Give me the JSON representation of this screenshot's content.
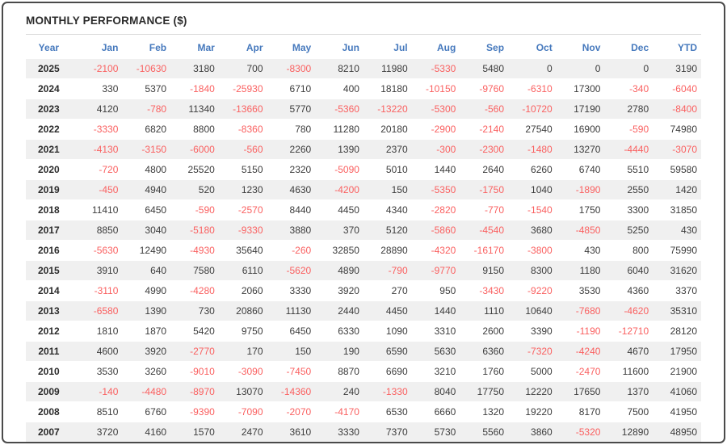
{
  "title": "MONTHLY PERFORMANCE ($)",
  "colors": {
    "header_text": "#4679bd",
    "negative_value": "#fa6060",
    "positive_value": "#3c3c3c",
    "row_alternate_bg": "#f0f0f0",
    "outer_border": "#4a4a4a"
  },
  "table": {
    "columns": [
      "Year",
      "Jan",
      "Feb",
      "Mar",
      "Apr",
      "May",
      "Jun",
      "Jul",
      "Aug",
      "Sep",
      "Oct",
      "Nov",
      "Dec",
      "YTD"
    ],
    "rows": [
      {
        "year": "2025",
        "values": [
          -2100,
          -10630,
          3180,
          700,
          -8300,
          8210,
          11980,
          -5330,
          5480,
          0,
          0,
          0,
          3190
        ]
      },
      {
        "year": "2024",
        "values": [
          330,
          5370,
          -1840,
          -25930,
          6710,
          400,
          18180,
          -10150,
          -9760,
          -6310,
          17300,
          -340,
          -6040
        ]
      },
      {
        "year": "2023",
        "values": [
          4120,
          -780,
          11340,
          -13660,
          5770,
          -5360,
          -13220,
          -5300,
          -560,
          -10720,
          17190,
          2780,
          -8400
        ]
      },
      {
        "year": "2022",
        "values": [
          -3330,
          6820,
          8800,
          -8360,
          780,
          11280,
          20180,
          -2900,
          -2140,
          27540,
          16900,
          -590,
          74980
        ]
      },
      {
        "year": "2021",
        "values": [
          -4130,
          -3150,
          -6000,
          -560,
          2260,
          1390,
          2370,
          -300,
          -2300,
          -1480,
          13270,
          -4440,
          -3070
        ]
      },
      {
        "year": "2020",
        "values": [
          -720,
          4800,
          25520,
          5150,
          2320,
          -5090,
          5010,
          1440,
          2640,
          6260,
          6740,
          5510,
          59580
        ]
      },
      {
        "year": "2019",
        "values": [
          -450,
          4940,
          520,
          1230,
          4630,
          -4200,
          150,
          -5350,
          -1750,
          1040,
          -1890,
          2550,
          1420
        ]
      },
      {
        "year": "2018",
        "values": [
          11410,
          6450,
          -590,
          -2570,
          8440,
          4450,
          4340,
          -2820,
          -770,
          -1540,
          1750,
          3300,
          31850
        ]
      },
      {
        "year": "2017",
        "values": [
          8850,
          3040,
          -5180,
          -9330,
          3880,
          370,
          5120,
          -5860,
          -4540,
          3680,
          -4850,
          5250,
          430
        ]
      },
      {
        "year": "2016",
        "values": [
          -5630,
          12490,
          -4930,
          35640,
          -260,
          32850,
          28890,
          -4320,
          -16170,
          -3800,
          430,
          800,
          75990
        ]
      },
      {
        "year": "2015",
        "values": [
          3910,
          640,
          7580,
          6110,
          -5620,
          4890,
          -790,
          -9770,
          9150,
          8300,
          1180,
          6040,
          31620
        ]
      },
      {
        "year": "2014",
        "values": [
          -3110,
          4990,
          -4280,
          2060,
          3330,
          3920,
          270,
          950,
          -3430,
          -9220,
          3530,
          4360,
          3370
        ]
      },
      {
        "year": "2013",
        "values": [
          -6580,
          1390,
          730,
          20860,
          11130,
          2440,
          4450,
          1440,
          1110,
          10640,
          -7680,
          -4620,
          35310
        ]
      },
      {
        "year": "2012",
        "values": [
          1810,
          1870,
          5420,
          9750,
          6450,
          6330,
          1090,
          3310,
          2600,
          3390,
          -1190,
          -12710,
          28120
        ]
      },
      {
        "year": "2011",
        "values": [
          4600,
          3920,
          -2770,
          170,
          150,
          190,
          6590,
          5630,
          6360,
          -7320,
          -4240,
          4670,
          17950
        ]
      },
      {
        "year": "2010",
        "values": [
          3530,
          3260,
          -9010,
          -3090,
          -7450,
          8870,
          6690,
          3210,
          1760,
          5000,
          -2470,
          11600,
          21900
        ]
      },
      {
        "year": "2009",
        "values": [
          -140,
          -4480,
          -8970,
          13070,
          -14360,
          240,
          -1330,
          8040,
          17750,
          12220,
          17650,
          1370,
          41060
        ]
      },
      {
        "year": "2008",
        "values": [
          8510,
          6760,
          -9390,
          -7090,
          -2070,
          -4170,
          6530,
          6660,
          1320,
          19220,
          8170,
          7500,
          41950
        ]
      },
      {
        "year": "2007",
        "values": [
          3720,
          4160,
          1570,
          2470,
          3610,
          3330,
          7370,
          5730,
          5560,
          3860,
          -5320,
          12890,
          48950
        ]
      }
    ]
  }
}
